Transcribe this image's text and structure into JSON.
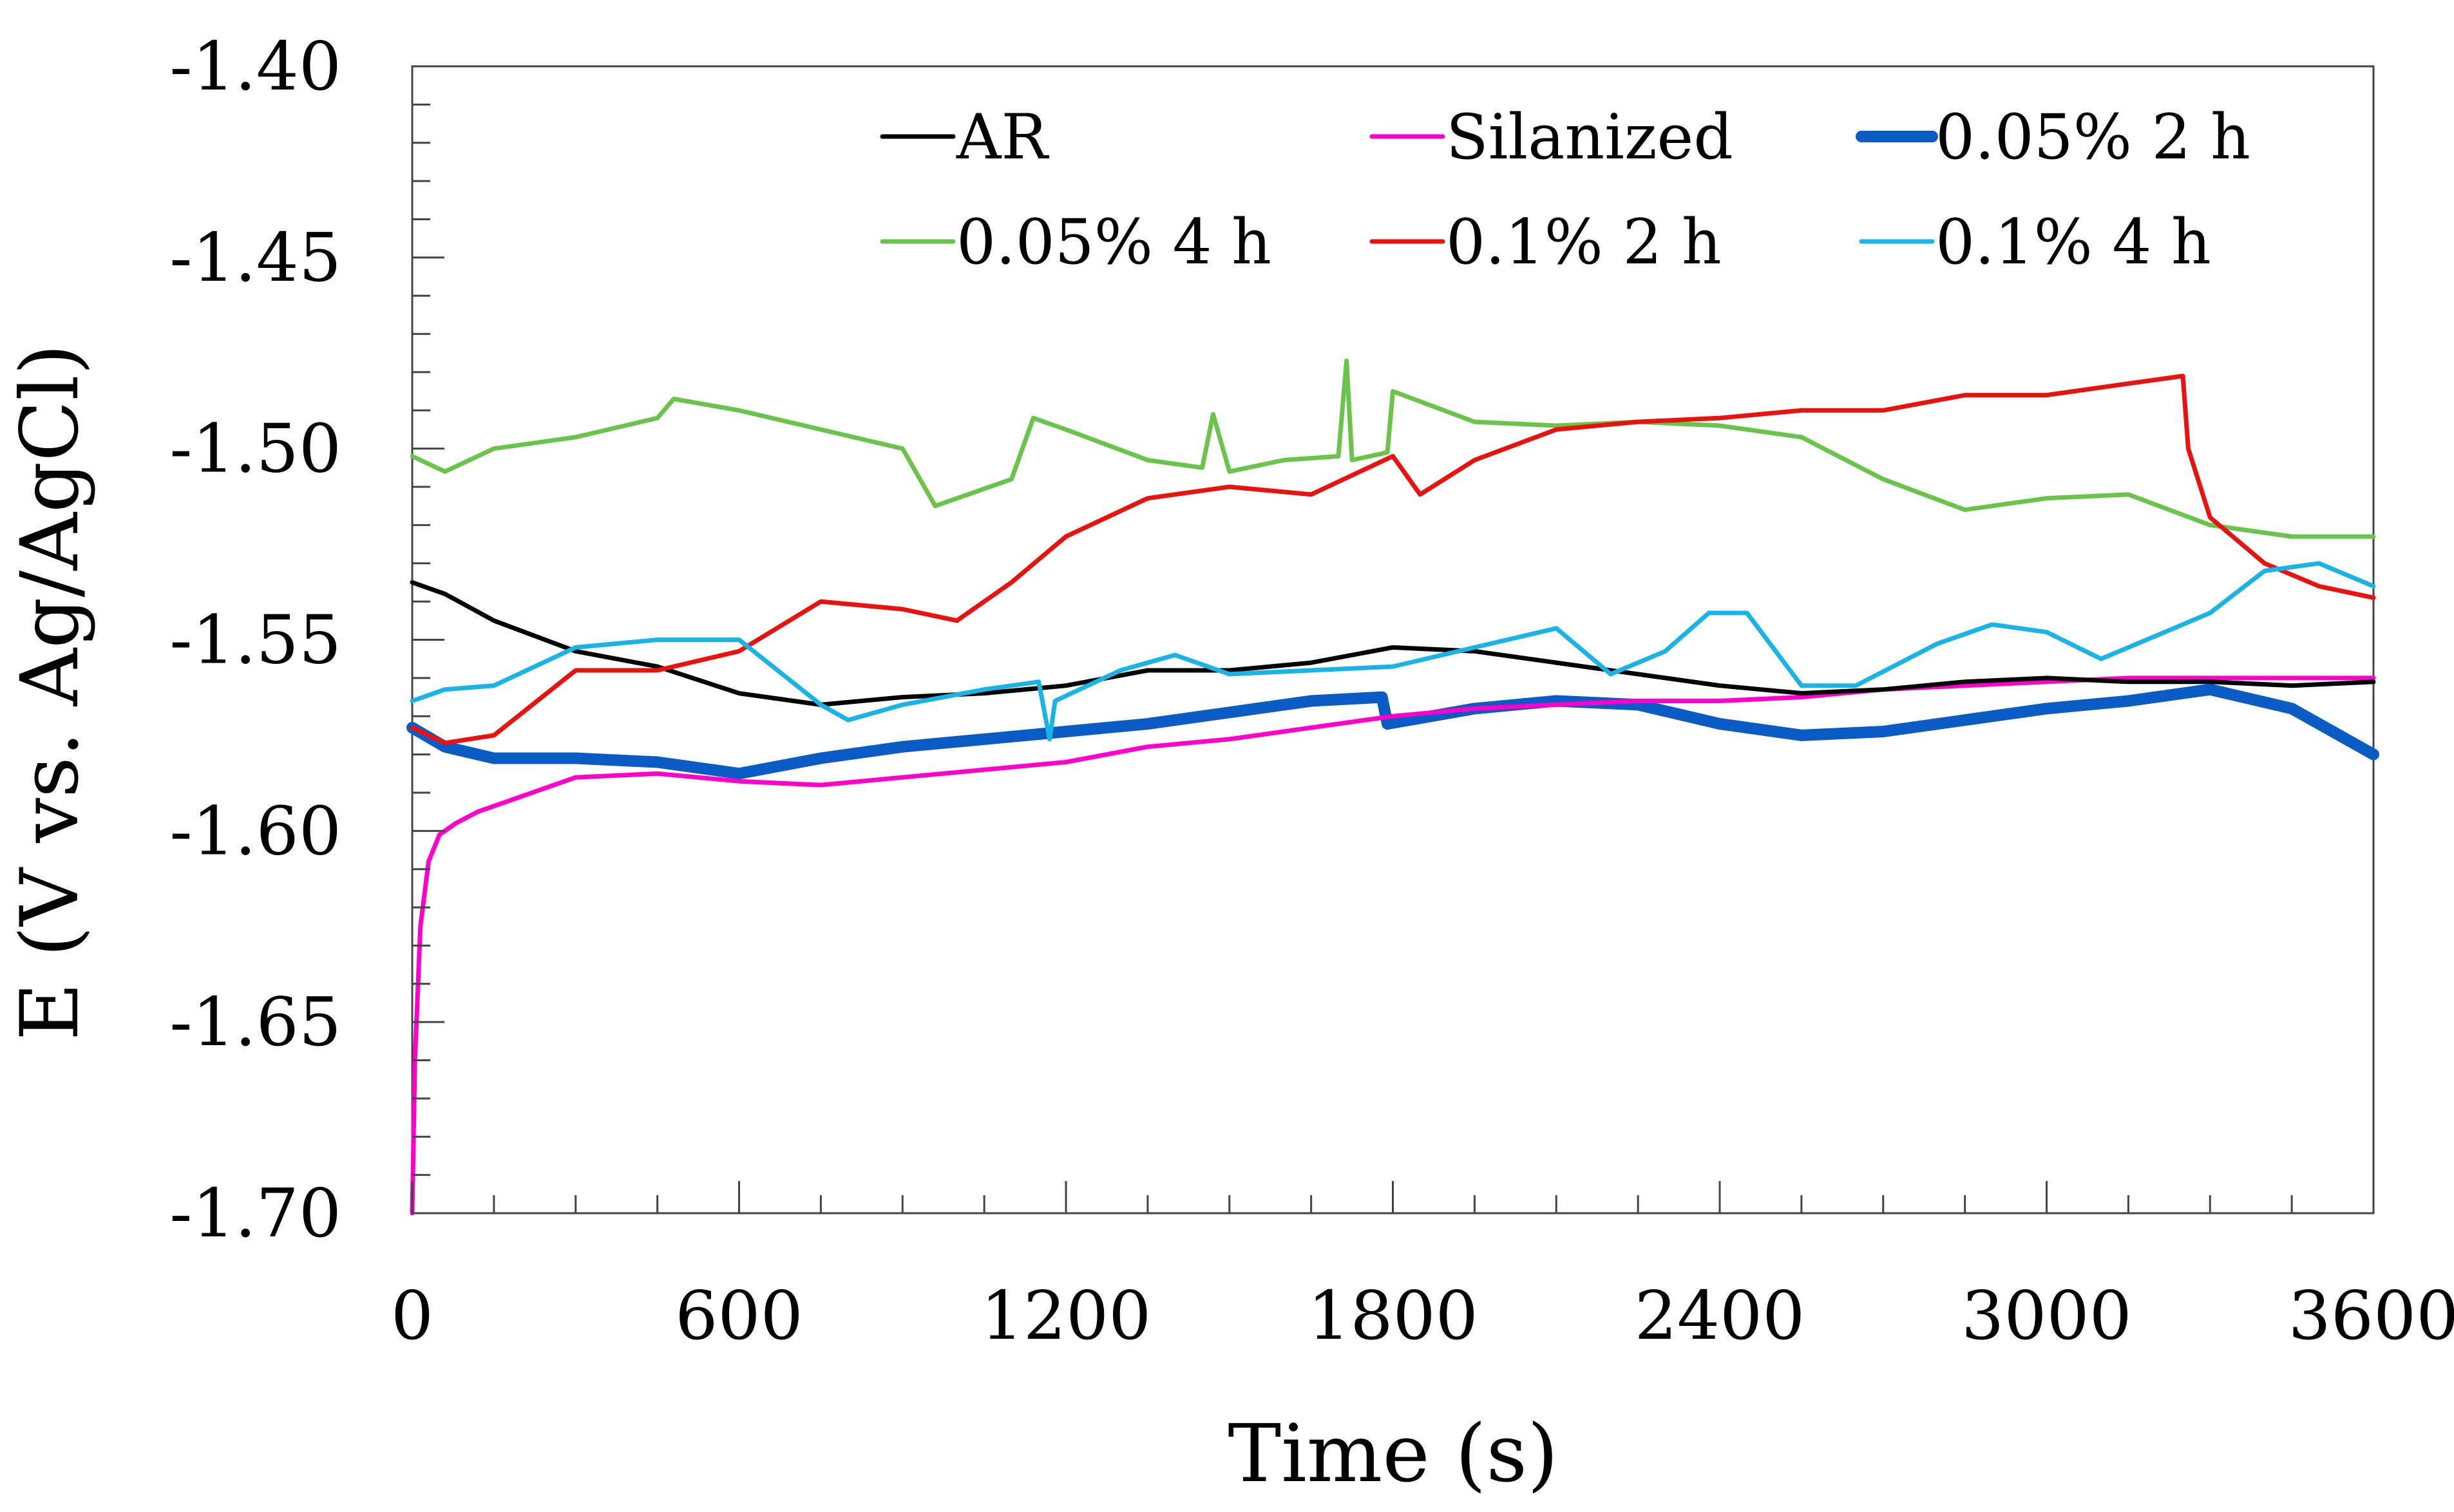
{
  "chart_data": {
    "type": "line",
    "xlabel": "Time (s)",
    "ylabel": "E (V vs. Ag/AgCl)",
    "xlim": [
      0,
      3600
    ],
    "ylim": [
      -1.7,
      -1.4
    ],
    "x_ticks": [
      0,
      600,
      1200,
      1800,
      2400,
      3000,
      3600
    ],
    "x_tick_labels": [
      "0",
      "600",
      "1200",
      "1800",
      "2400",
      "3000",
      "3600"
    ],
    "y_ticks": [
      -1.4,
      -1.45,
      -1.5,
      -1.55,
      -1.6,
      -1.65,
      -1.7
    ],
    "y_tick_labels": [
      "-1.40",
      "-1.45",
      "-1.50",
      "-1.55",
      "-1.60",
      "-1.65",
      "-1.70"
    ],
    "grid": false,
    "legend_position": "top",
    "series": [
      {
        "name": "AR",
        "color": "#000000",
        "x": [
          0,
          60,
          150,
          300,
          450,
          600,
          750,
          900,
          1050,
          1200,
          1350,
          1500,
          1650,
          1800,
          1950,
          2100,
          2250,
          2400,
          2550,
          2700,
          2850,
          3000,
          3150,
          3300,
          3450,
          3600
        ],
        "y": [
          -1.535,
          -1.538,
          -1.545,
          -1.553,
          -1.557,
          -1.564,
          -1.567,
          -1.565,
          -1.564,
          -1.562,
          -1.558,
          -1.558,
          -1.556,
          -1.552,
          -1.553,
          -1.556,
          -1.559,
          -1.562,
          -1.564,
          -1.563,
          -1.561,
          -1.56,
          -1.561,
          -1.561,
          -1.562,
          -1.561
        ]
      },
      {
        "name": "Silanized",
        "color": "#ff00cc",
        "x": [
          0,
          5,
          15,
          30,
          50,
          80,
          120,
          200,
          300,
          450,
          600,
          750,
          900,
          1050,
          1200,
          1350,
          1500,
          1650,
          1800,
          1950,
          2100,
          2250,
          2400,
          2550,
          2700,
          2850,
          3000,
          3150,
          3300,
          3450,
          3600
        ],
        "y": [
          -1.7,
          -1.66,
          -1.625,
          -1.608,
          -1.601,
          -1.598,
          -1.595,
          -1.591,
          -1.586,
          -1.585,
          -1.587,
          -1.588,
          -1.586,
          -1.584,
          -1.582,
          -1.578,
          -1.576,
          -1.573,
          -1.57,
          -1.568,
          -1.567,
          -1.566,
          -1.566,
          -1.565,
          -1.563,
          -1.562,
          -1.561,
          -1.56,
          -1.56,
          -1.56,
          -1.56
        ]
      },
      {
        "name": "0.05% 2 h",
        "color": "#0a5bc4",
        "x": [
          0,
          60,
          150,
          300,
          450,
          600,
          750,
          900,
          1050,
          1200,
          1350,
          1500,
          1650,
          1780,
          1790,
          1950,
          2100,
          2250,
          2400,
          2550,
          2700,
          2850,
          3000,
          3150,
          3300,
          3450,
          3600
        ],
        "y": [
          -1.573,
          -1.578,
          -1.581,
          -1.581,
          -1.582,
          -1.585,
          -1.581,
          -1.578,
          -1.576,
          -1.574,
          -1.572,
          -1.569,
          -1.566,
          -1.565,
          -1.572,
          -1.568,
          -1.566,
          -1.567,
          -1.572,
          -1.575,
          -1.574,
          -1.571,
          -1.568,
          -1.566,
          -1.563,
          -1.568,
          -1.58
        ]
      },
      {
        "name": "0.05% 4 h",
        "color": "#6ac44c",
        "x": [
          0,
          60,
          150,
          300,
          450,
          480,
          600,
          750,
          900,
          960,
          1100,
          1140,
          1200,
          1350,
          1450,
          1470,
          1500,
          1600,
          1700,
          1715,
          1725,
          1790,
          1800,
          1950,
          2100,
          2250,
          2400,
          2550,
          2700,
          2850,
          3000,
          3150,
          3300,
          3450,
          3600
        ],
        "y": [
          -1.502,
          -1.506,
          -1.5,
          -1.497,
          -1.492,
          -1.487,
          -1.49,
          -1.495,
          -1.5,
          -1.515,
          -1.508,
          -1.492,
          -1.495,
          -1.503,
          -1.505,
          -1.491,
          -1.506,
          -1.503,
          -1.502,
          -1.477,
          -1.503,
          -1.501,
          -1.485,
          -1.493,
          -1.494,
          -1.493,
          -1.494,
          -1.497,
          -1.508,
          -1.516,
          -1.513,
          -1.512,
          -1.52,
          -1.523,
          -1.523
        ]
      },
      {
        "name": "0.1% 2 h",
        "color": "#e8120e",
        "x": [
          0,
          60,
          150,
          300,
          450,
          600,
          750,
          900,
          1000,
          1100,
          1200,
          1350,
          1500,
          1650,
          1800,
          1850,
          1950,
          2100,
          2250,
          2400,
          2550,
          2700,
          2850,
          3000,
          3150,
          3250,
          3260,
          3300,
          3400,
          3500,
          3600
        ],
        "y": [
          -1.573,
          -1.577,
          -1.575,
          -1.558,
          -1.558,
          -1.553,
          -1.54,
          -1.542,
          -1.545,
          -1.535,
          -1.523,
          -1.513,
          -1.51,
          -1.512,
          -1.502,
          -1.512,
          -1.503,
          -1.495,
          -1.493,
          -1.492,
          -1.49,
          -1.49,
          -1.486,
          -1.486,
          -1.483,
          -1.481,
          -1.5,
          -1.518,
          -1.53,
          -1.536,
          -1.539
        ]
      },
      {
        "name": "0.1% 4 h",
        "color": "#19b3e6",
        "x": [
          0,
          60,
          150,
          300,
          450,
          600,
          750,
          800,
          900,
          1050,
          1150,
          1170,
          1180,
          1300,
          1400,
          1500,
          1650,
          1800,
          1950,
          2100,
          2200,
          2300,
          2380,
          2450,
          2550,
          2650,
          2800,
          2900,
          3000,
          3100,
          3200,
          3300,
          3400,
          3500,
          3600
        ],
        "y": [
          -1.566,
          -1.563,
          -1.562,
          -1.552,
          -1.55,
          -1.55,
          -1.567,
          -1.571,
          -1.567,
          -1.563,
          -1.561,
          -1.576,
          -1.566,
          -1.558,
          -1.554,
          -1.559,
          -1.558,
          -1.557,
          -1.552,
          -1.547,
          -1.559,
          -1.553,
          -1.543,
          -1.543,
          -1.562,
          -1.562,
          -1.551,
          -1.546,
          -1.548,
          -1.555,
          -1.549,
          -1.543,
          -1.532,
          -1.53,
          -1.536
        ]
      }
    ]
  }
}
